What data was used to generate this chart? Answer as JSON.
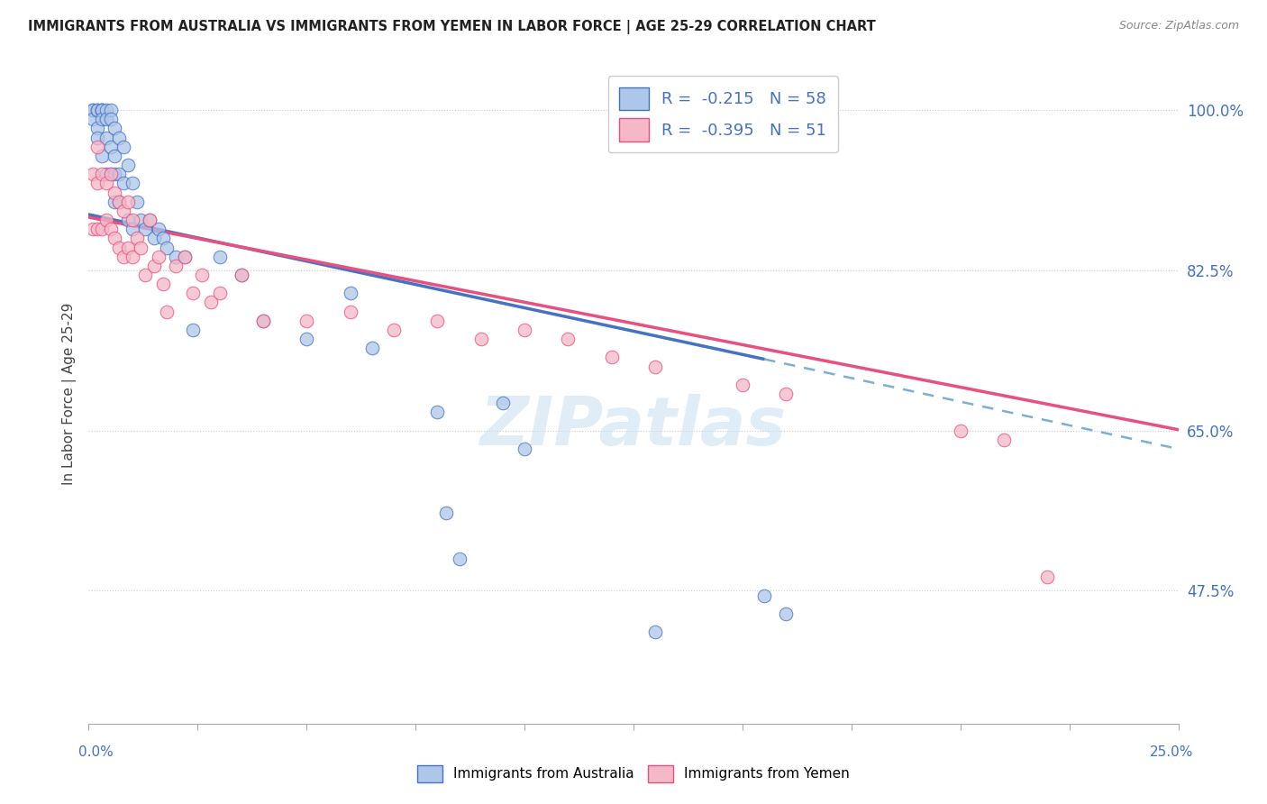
{
  "title": "IMMIGRANTS FROM AUSTRALIA VS IMMIGRANTS FROM YEMEN IN LABOR FORCE | AGE 25-29 CORRELATION CHART",
  "source": "Source: ZipAtlas.com",
  "ylabel": "In Labor Force | Age 25-29",
  "right_yticks": [
    1.0,
    0.825,
    0.65,
    0.475
  ],
  "right_yticklabels": [
    "100.0%",
    "82.5%",
    "65.0%",
    "47.5%"
  ],
  "xmin": 0.0,
  "xmax": 0.25,
  "ymin": 0.33,
  "ymax": 1.05,
  "legend_R1": "-0.215",
  "legend_N1": "58",
  "legend_R2": "-0.395",
  "legend_N2": "51",
  "color_australia": "#aec6e8",
  "color_yemen": "#f4b8c8",
  "color_blue_line": "#4472c4",
  "color_pink_line": "#e85080",
  "color_dashed": "#7bafd4",
  "color_axis_label": "#4472c4",
  "watermark": "ZIPatlas",
  "aus_line_x0": 0.0,
  "aus_line_y0": 0.886,
  "aus_line_x1": 0.155,
  "aus_line_y1": 0.728,
  "aus_line_x1_ext": 0.25,
  "aus_line_y1_ext": 0.63,
  "yem_line_x0": 0.0,
  "yem_line_y0": 0.883,
  "yem_line_x1": 0.25,
  "yem_line_y1": 0.651,
  "australia_x": [
    0.001,
    0.001,
    0.001,
    0.002,
    0.002,
    0.002,
    0.002,
    0.003,
    0.003,
    0.003,
    0.003,
    0.003,
    0.004,
    0.004,
    0.004,
    0.004,
    0.005,
    0.005,
    0.005,
    0.005,
    0.006,
    0.006,
    0.006,
    0.006,
    0.007,
    0.007,
    0.007,
    0.008,
    0.008,
    0.009,
    0.009,
    0.01,
    0.01,
    0.011,
    0.012,
    0.013,
    0.014,
    0.015,
    0.016,
    0.017,
    0.018,
    0.02,
    0.022,
    0.024,
    0.03,
    0.035,
    0.04,
    0.05,
    0.06,
    0.065,
    0.08,
    0.082,
    0.085,
    0.095,
    0.1,
    0.13,
    0.155,
    0.16
  ],
  "australia_y": [
    1.0,
    1.0,
    0.99,
    1.0,
    1.0,
    0.98,
    0.97,
    1.0,
    1.0,
    1.0,
    0.99,
    0.95,
    1.0,
    0.99,
    0.97,
    0.93,
    1.0,
    0.99,
    0.96,
    0.93,
    0.98,
    0.95,
    0.93,
    0.9,
    0.97,
    0.93,
    0.9,
    0.96,
    0.92,
    0.94,
    0.88,
    0.92,
    0.87,
    0.9,
    0.88,
    0.87,
    0.88,
    0.86,
    0.87,
    0.86,
    0.85,
    0.84,
    0.84,
    0.76,
    0.84,
    0.82,
    0.77,
    0.75,
    0.8,
    0.74,
    0.67,
    0.56,
    0.51,
    0.68,
    0.63,
    0.43,
    0.47,
    0.45
  ],
  "yemen_x": [
    0.001,
    0.001,
    0.002,
    0.002,
    0.002,
    0.003,
    0.003,
    0.004,
    0.004,
    0.005,
    0.005,
    0.006,
    0.006,
    0.007,
    0.007,
    0.008,
    0.008,
    0.009,
    0.009,
    0.01,
    0.01,
    0.011,
    0.012,
    0.013,
    0.014,
    0.015,
    0.016,
    0.017,
    0.018,
    0.02,
    0.022,
    0.024,
    0.026,
    0.028,
    0.03,
    0.035,
    0.04,
    0.05,
    0.06,
    0.07,
    0.08,
    0.09,
    0.1,
    0.11,
    0.12,
    0.13,
    0.15,
    0.16,
    0.2,
    0.21,
    0.22
  ],
  "yemen_y": [
    0.93,
    0.87,
    0.96,
    0.92,
    0.87,
    0.93,
    0.87,
    0.92,
    0.88,
    0.93,
    0.87,
    0.91,
    0.86,
    0.9,
    0.85,
    0.89,
    0.84,
    0.9,
    0.85,
    0.88,
    0.84,
    0.86,
    0.85,
    0.82,
    0.88,
    0.83,
    0.84,
    0.81,
    0.78,
    0.83,
    0.84,
    0.8,
    0.82,
    0.79,
    0.8,
    0.82,
    0.77,
    0.77,
    0.78,
    0.76,
    0.77,
    0.75,
    0.76,
    0.75,
    0.73,
    0.72,
    0.7,
    0.69,
    0.65,
    0.64,
    0.49
  ]
}
